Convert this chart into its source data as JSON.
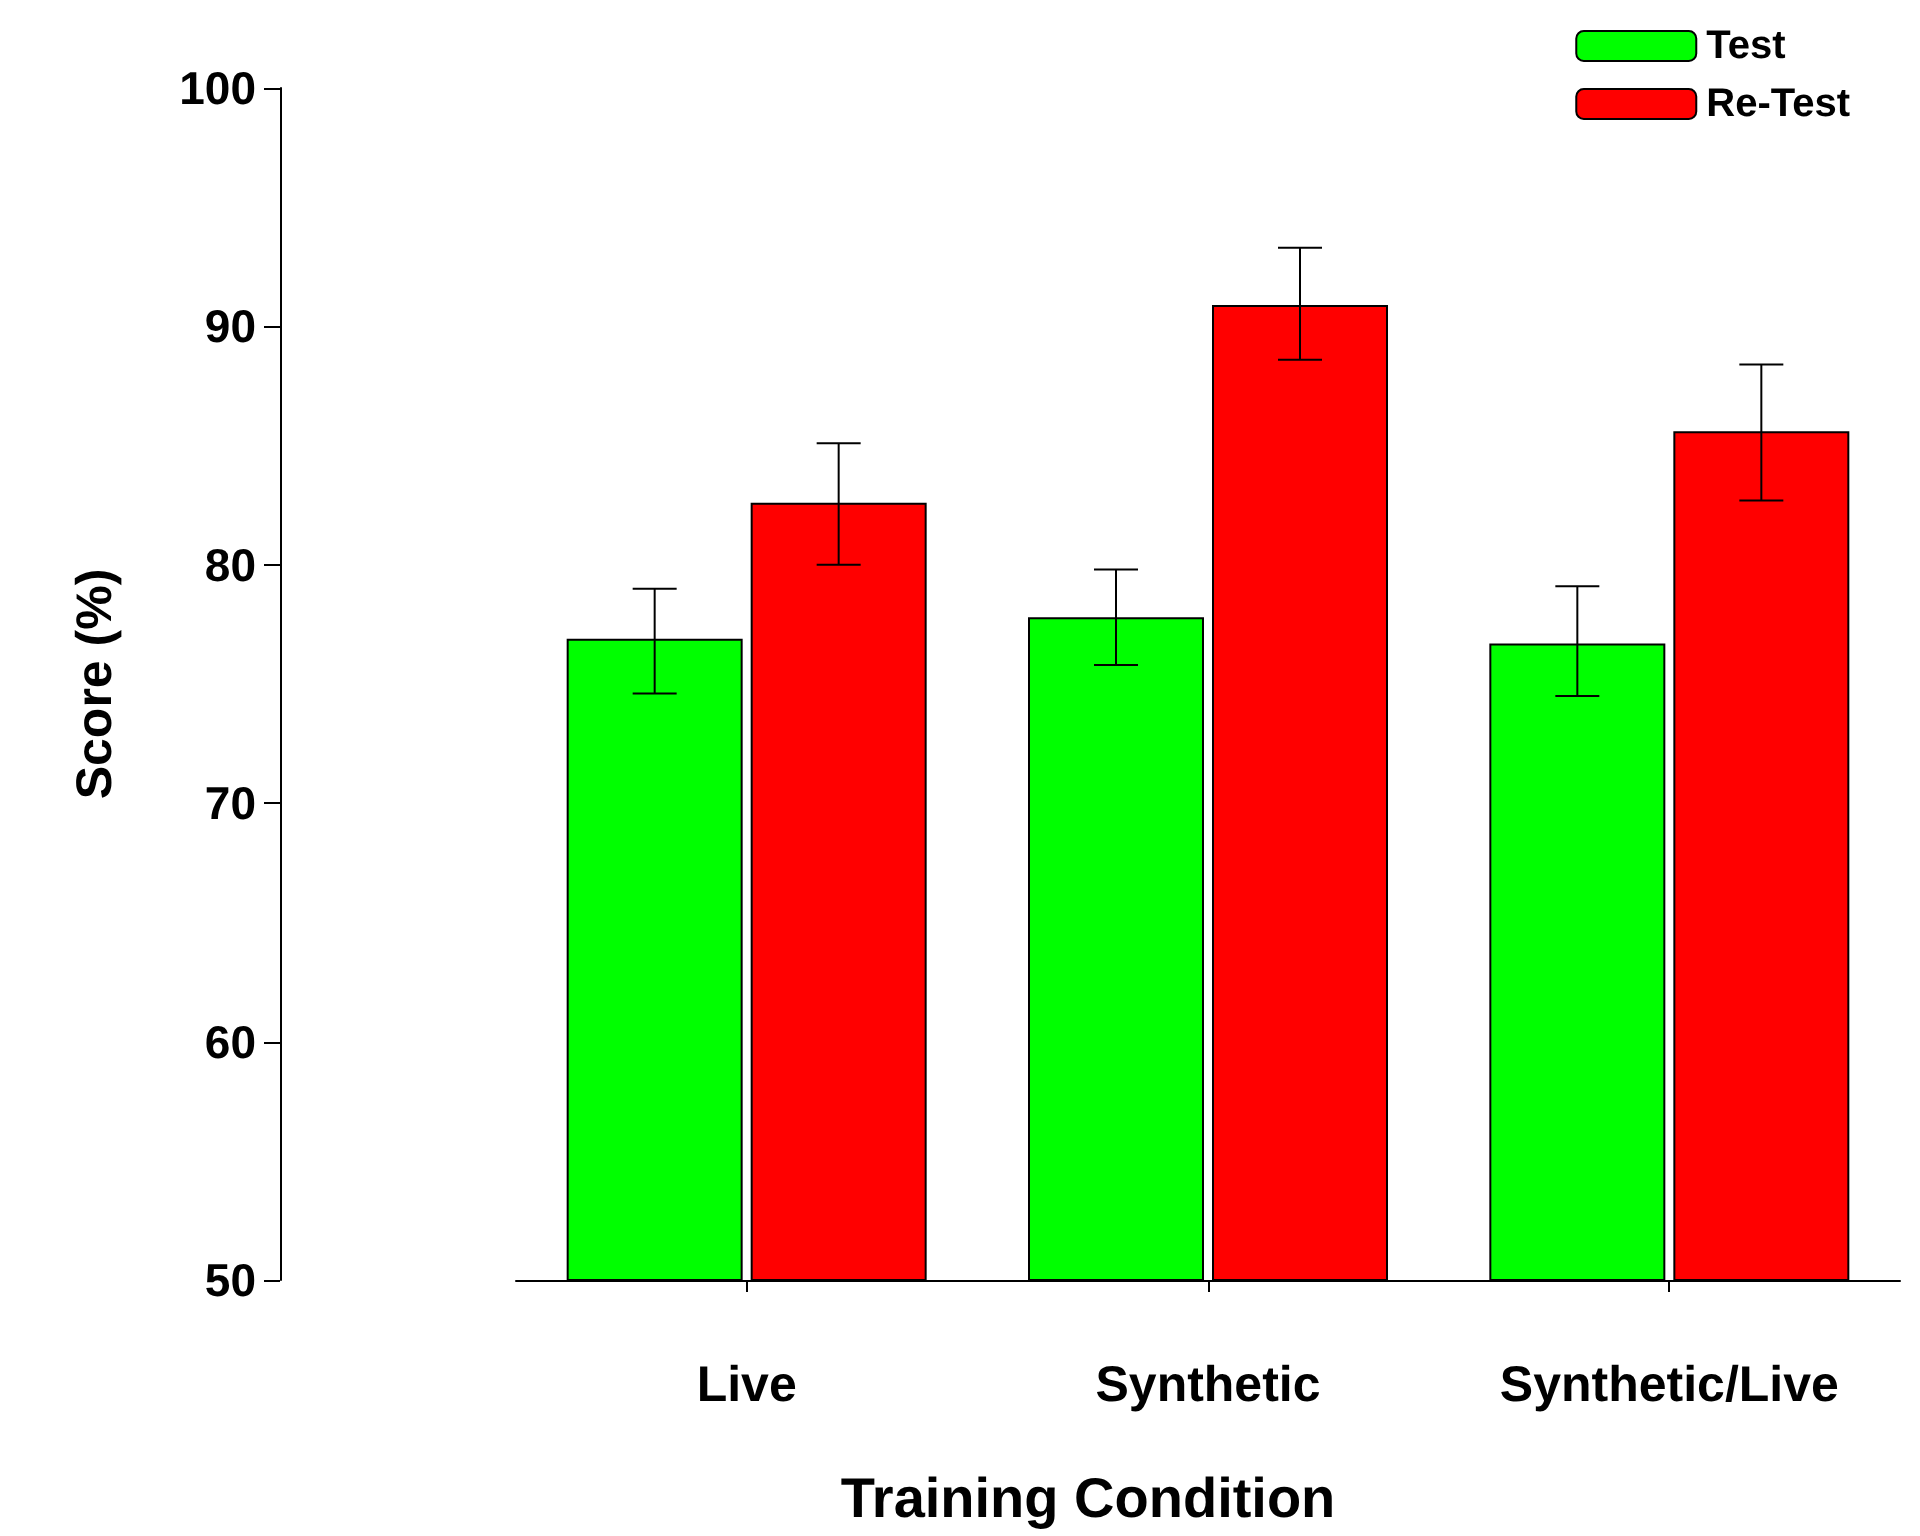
{
  "chart_data": {
    "type": "bar",
    "xlabel": "Training Condition",
    "ylabel": "Score (%)",
    "categories": [
      "Live",
      "Synthetic",
      "Synthetic/Live"
    ],
    "series": [
      {
        "name": "Test",
        "color": "#00ff00",
        "values": [
          76.9,
          77.8,
          76.7
        ],
        "errors": [
          [
            74.6,
            79.0
          ],
          [
            75.8,
            79.8
          ],
          [
            74.5,
            79.1
          ]
        ]
      },
      {
        "name": "Re-Test",
        "color": "#ff0000",
        "values": [
          82.6,
          90.9,
          85.6
        ],
        "errors": [
          [
            80.0,
            85.1
          ],
          [
            88.6,
            93.3
          ],
          [
            82.7,
            88.4
          ]
        ]
      }
    ],
    "ylim": [
      50,
      100
    ],
    "yticks": [
      50,
      60,
      70,
      80,
      90,
      100
    ],
    "grid": false,
    "legend": "top right"
  }
}
